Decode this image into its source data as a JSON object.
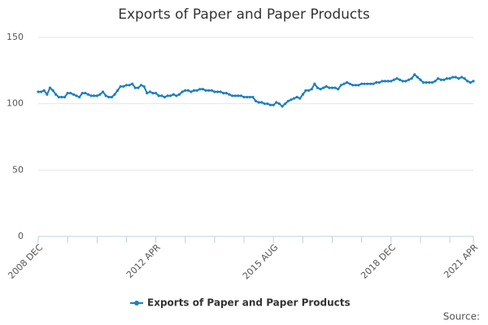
{
  "chart_data": {
    "type": "line",
    "title": "Exports of Paper and Paper Products",
    "source": "Source:",
    "categories": [
      "2008 DEC",
      null,
      null,
      null,
      null,
      null,
      null,
      null,
      null,
      null,
      null,
      null,
      null,
      null,
      null,
      null,
      null,
      null,
      null,
      null,
      null,
      null,
      null,
      null,
      null,
      null,
      null,
      null,
      null,
      null,
      null,
      null,
      null,
      null,
      null,
      null,
      null,
      null,
      null,
      null,
      "2012 APR",
      null,
      null,
      null,
      null,
      null,
      null,
      null,
      null,
      null,
      null,
      null,
      null,
      null,
      null,
      null,
      null,
      null,
      null,
      null,
      null,
      null,
      null,
      null,
      null,
      null,
      null,
      null,
      null,
      null,
      null,
      null,
      null,
      null,
      null,
      null,
      null,
      null,
      null,
      null,
      "2015 AUG",
      null,
      null,
      null,
      null,
      null,
      null,
      null,
      null,
      null,
      null,
      null,
      null,
      null,
      null,
      null,
      null,
      null,
      null,
      null,
      null,
      null,
      null,
      null,
      null,
      null,
      null,
      null,
      null,
      null,
      null,
      null,
      null,
      null,
      null,
      null,
      null,
      null,
      null,
      null,
      "2018 DEC",
      null,
      null,
      null,
      null,
      null,
      null,
      null,
      null,
      null,
      null,
      null,
      null,
      null,
      null,
      null,
      null,
      null,
      null,
      null,
      null,
      null,
      null,
      null,
      null,
      null,
      null,
      null,
      "2021 APR"
    ],
    "series": [
      {
        "name": "Exports of Paper and Paper Products",
        "color": "#1a7fc1",
        "values": [
          109,
          109,
          110,
          107,
          112,
          110,
          107,
          105,
          105,
          105,
          108,
          108,
          107,
          106,
          105,
          108,
          108,
          107,
          106,
          106,
          106,
          107,
          109,
          106,
          105,
          105,
          107,
          110,
          113,
          113,
          114,
          114,
          115,
          112,
          112,
          114,
          113,
          108,
          109,
          108,
          108,
          106,
          106,
          105,
          106,
          106,
          107,
          106,
          107,
          109,
          110,
          110,
          109,
          110,
          110,
          111,
          111,
          110,
          110,
          110,
          109,
          109,
          109,
          108,
          108,
          107,
          106,
          106,
          106,
          106,
          105,
          105,
          105,
          105,
          102,
          101,
          101,
          100,
          100,
          99,
          99,
          101,
          100,
          98,
          100,
          102,
          103,
          104,
          105,
          104,
          107,
          110,
          110,
          111,
          115,
          112,
          111,
          112,
          113,
          112,
          112,
          112,
          111,
          114,
          115,
          116,
          115,
          114,
          114,
          114,
          115,
          115,
          115,
          115,
          115,
          116,
          116,
          117,
          117,
          117,
          117,
          118,
          119,
          118,
          117,
          117,
          118,
          119,
          122,
          120,
          118,
          116,
          116,
          116,
          116,
          117,
          119,
          118,
          118,
          119,
          119,
          120,
          120,
          119,
          120,
          119,
          117,
          116,
          117
        ]
      }
    ],
    "ylim": [
      0,
      150
    ],
    "yticks": [
      0,
      50,
      100,
      150
    ],
    "grid": true
  }
}
